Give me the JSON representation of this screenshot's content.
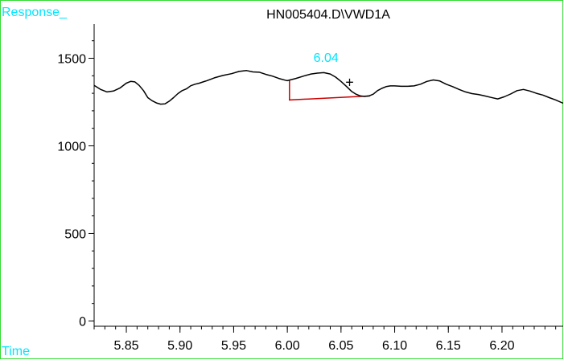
{
  "chart_data": {
    "type": "line",
    "title": "HN005404.D\\VWD1A",
    "ylabel": "Response_",
    "xlabel": "Time",
    "xlim": [
      5.82,
      6.257
    ],
    "ylim": [
      -30,
      1695
    ],
    "x_ticks": [
      5.85,
      5.9,
      5.95,
      6.0,
      6.05,
      6.1,
      6.15,
      6.2
    ],
    "x_tick_labels": [
      "5.85",
      "5.90",
      "5.95",
      "6.00",
      "6.05",
      "6.10",
      "6.15",
      "6.20"
    ],
    "x_minor_step": 0.01,
    "y_ticks": [
      0,
      500,
      1000,
      1500
    ],
    "y_tick_labels": [
      "0",
      "500",
      "1000",
      "1500"
    ],
    "y_minor_step": 100,
    "grid": false,
    "series": [
      {
        "x": [
          5.82,
          5.826,
          5.832,
          5.838,
          5.844,
          5.85,
          5.854,
          5.858,
          5.862,
          5.866,
          5.87,
          5.874,
          5.878,
          5.882,
          5.886,
          5.89,
          5.894,
          5.898,
          5.902,
          5.906,
          5.91,
          5.914,
          5.918,
          5.925,
          5.932,
          5.94,
          5.948,
          5.955,
          5.962,
          5.968,
          5.974,
          5.98,
          5.986,
          5.992,
          5.998,
          6.0,
          6.008,
          6.016,
          6.022,
          6.028,
          6.034,
          6.04,
          6.045,
          6.05,
          6.055,
          6.06,
          6.064,
          6.068,
          6.072,
          6.076,
          6.08,
          6.084,
          6.088,
          6.092,
          6.096,
          6.1,
          6.106,
          6.112,
          6.118,
          6.124,
          6.13,
          6.136,
          6.142,
          6.148,
          6.154,
          6.16,
          6.166,
          6.172,
          6.178,
          6.184,
          6.19,
          6.196,
          6.202,
          6.208,
          6.214,
          6.22,
          6.226,
          6.232,
          6.238,
          6.244,
          6.25,
          6.257
        ],
        "y": [
          1345,
          1322,
          1308,
          1313,
          1330,
          1358,
          1368,
          1365,
          1345,
          1315,
          1275,
          1258,
          1245,
          1238,
          1240,
          1255,
          1275,
          1298,
          1315,
          1325,
          1343,
          1352,
          1358,
          1372,
          1388,
          1402,
          1412,
          1425,
          1430,
          1422,
          1420,
          1408,
          1398,
          1385,
          1375,
          1372,
          1385,
          1400,
          1410,
          1415,
          1418,
          1410,
          1392,
          1368,
          1340,
          1310,
          1295,
          1285,
          1282,
          1285,
          1295,
          1315,
          1328,
          1338,
          1342,
          1342,
          1340,
          1340,
          1342,
          1352,
          1368,
          1376,
          1370,
          1352,
          1338,
          1322,
          1308,
          1298,
          1293,
          1285,
          1276,
          1268,
          1280,
          1296,
          1315,
          1322,
          1313,
          1300,
          1290,
          1275,
          1262,
          1243
        ]
      }
    ],
    "annotations": [
      {
        "text": "6.04",
        "x": 6.036,
        "y": 1480,
        "color": "#00e5ff"
      },
      {
        "text": "+",
        "x": 6.058,
        "y": 1335,
        "color": "#000000"
      }
    ],
    "baseline_segment": {
      "points": [
        [
          6.002,
          1372
        ],
        [
          6.002,
          1262
        ],
        [
          6.077,
          1285
        ]
      ],
      "color": "#cc0000"
    },
    "colors": {
      "frame": "#33dd33",
      "axis_label": "#00e5ff",
      "trace": "#000000",
      "axes": "#000000"
    }
  }
}
